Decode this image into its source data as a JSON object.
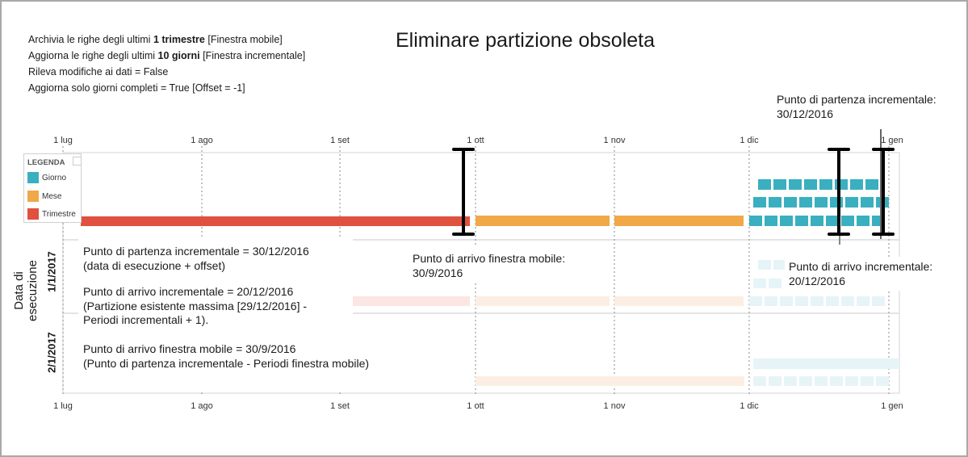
{
  "title": "Eliminare partizione obsoleta",
  "settings": [
    {
      "pre": "Archivia le righe degli ultimi ",
      "bold": "1 trimestre",
      "post": " [Finestra mobile]"
    },
    {
      "pre": "Aggiorna le righe degli ultimi ",
      "bold": "10 giorni",
      "post": " [Finestra incrementale]"
    },
    {
      "pre": "Rileva modifiche ai dati = False",
      "bold": "",
      "post": ""
    },
    {
      "pre": "Aggiorna solo giorni completi = True [Offset = -1]",
      "bold": "",
      "post": ""
    }
  ],
  "axis": {
    "ticks": [
      "1 lug",
      "1 ago",
      "1 set",
      "1 ott",
      "1 nov",
      "1 dic",
      "1 gen"
    ],
    "y_title": "Data di esecuzione",
    "rows": [
      "1/1/2017",
      "2/1/2017"
    ]
  },
  "legend": {
    "title": "LEGENDA",
    "items": [
      {
        "label": "Giorno",
        "color": "#3AAFBF"
      },
      {
        "label": "Mese",
        "color": "#F0A848"
      },
      {
        "label": "Trimestre",
        "color": "#E0513F"
      }
    ]
  },
  "annotations": {
    "top_right_line1": "Punto di partenza incrementale:",
    "top_right_line2": "30/12/2016",
    "box1_line1": "Punto di partenza incrementale = 30/12/2016",
    "box1_line2": "(data di esecuzione + offset)",
    "box2_line1": "Punto di arrivo incrementale = 20/12/2016",
    "box2_line2": "(Partizione esistente massima [29/12/2016] -",
    "box2_line3": "Periodi incrementali + 1).",
    "box3_line1": "Punto di arrivo finestra mobile = 30/9/2016",
    "box3_line2": "(Punto di partenza incrementale - Periodi finestra mobile)",
    "mid_line1": "Punto di arrivo finestra mobile:",
    "mid_line2": "30/9/2016",
    "right_line1": "Punto di arrivo incrementale:",
    "right_line2": "20/12/2016"
  },
  "colors": {
    "day": "#3AAFBF",
    "month": "#F0A848",
    "quarter": "#E0513F",
    "day_faded": "#E6F4F7",
    "month_faded": "#FCEEE2",
    "quarter_faded": "#FBE6E3"
  }
}
